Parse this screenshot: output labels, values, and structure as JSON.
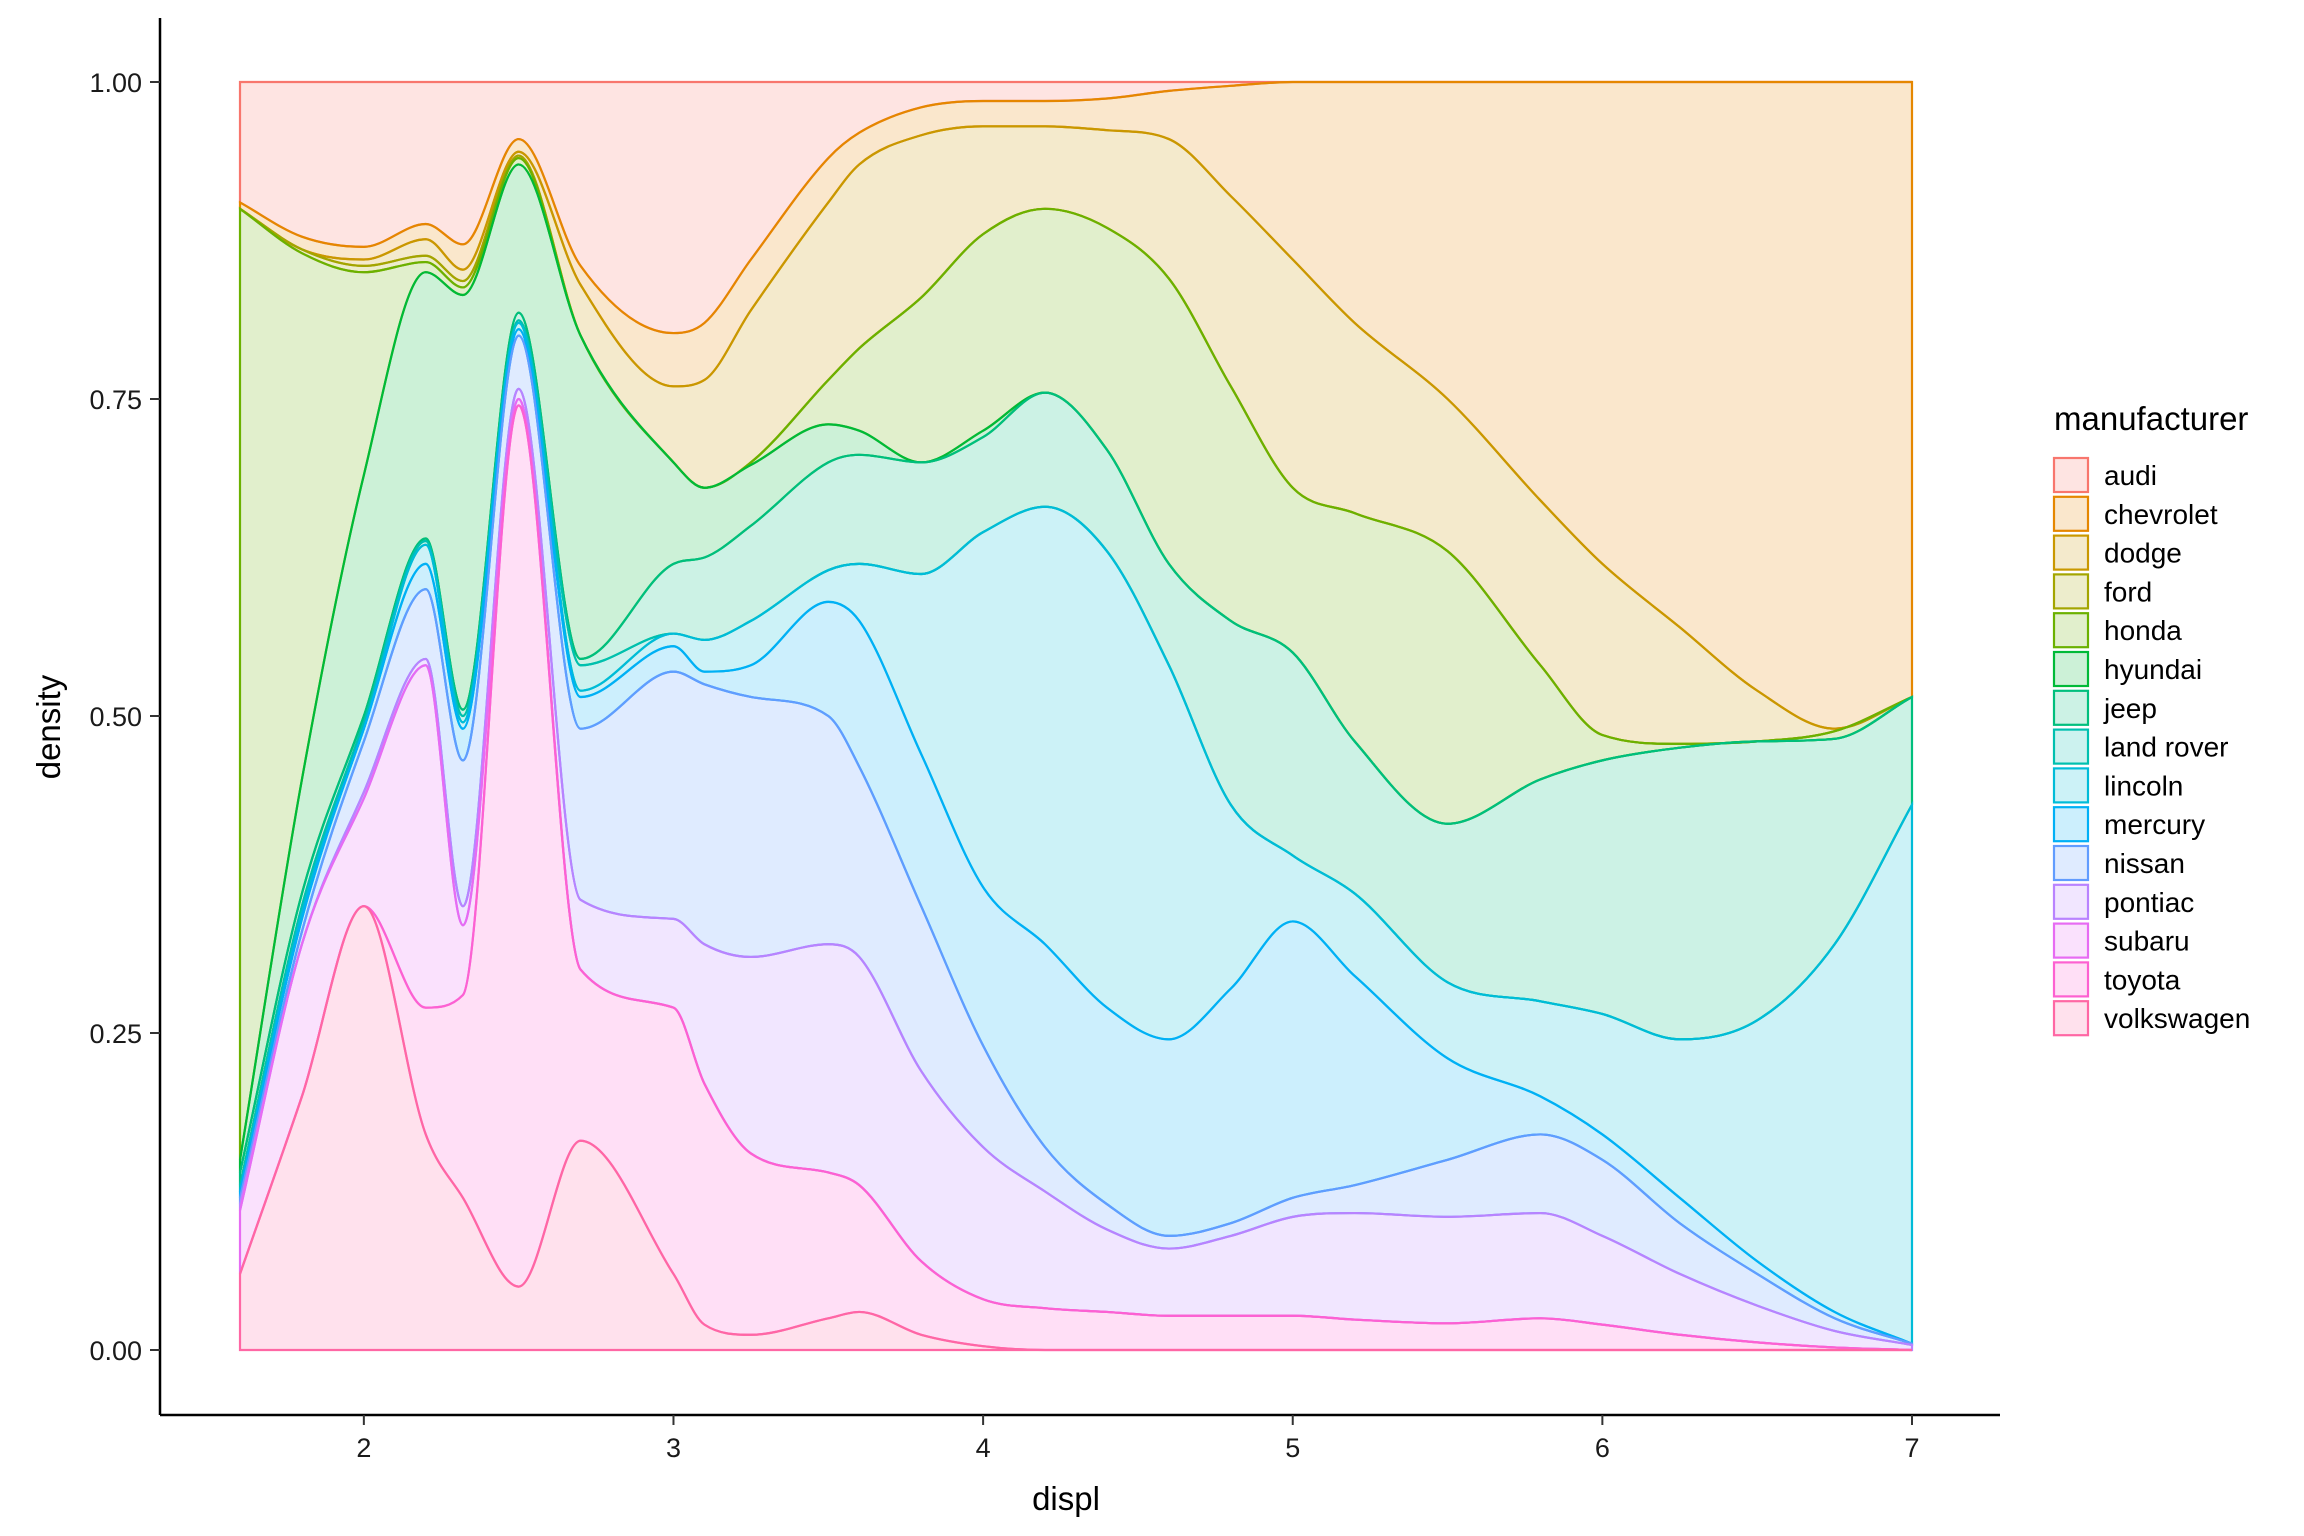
{
  "chart_data": {
    "type": "area",
    "subtype": "stacked-conditional-density",
    "xlabel": "displ",
    "ylabel": "density",
    "xlim": [
      1.6,
      7.0
    ],
    "ylim": [
      0,
      1
    ],
    "x_ticks": [
      "2",
      "3",
      "4",
      "5",
      "6",
      "7"
    ],
    "y_ticks": [
      "0.00",
      "0.25",
      "0.50",
      "0.75",
      "1.00"
    ],
    "grid": false,
    "legend": {
      "title": "manufacturer",
      "position": "right",
      "entries": [
        "audi",
        "chevrolet",
        "dodge",
        "ford",
        "honda",
        "hyundai",
        "jeep",
        "land rover",
        "lincoln",
        "mercury",
        "nissan",
        "pontiac",
        "subaru",
        "toyota",
        "volkswagen"
      ]
    },
    "colors": [
      "#F8766D",
      "#E58700",
      "#C99800",
      "#A3A500",
      "#6BB100",
      "#00BA38",
      "#00BF7D",
      "#00C0AF",
      "#00BCD8",
      "#00B0F6",
      "#619CFF",
      "#B983FF",
      "#E76BF3",
      "#FD61D1",
      "#FF67A4"
    ],
    "x": [
      1.6,
      1.8,
      2.0,
      2.2,
      2.32,
      2.5,
      2.7,
      3.0,
      3.1,
      3.25,
      3.5,
      3.6,
      3.8,
      4.0,
      4.2,
      4.4,
      4.6,
      4.8,
      5.0,
      5.2,
      5.5,
      5.8,
      6.0,
      6.25,
      6.5,
      6.75,
      7.0
    ],
    "series": [
      {
        "name": "audi",
        "upper": [
          1.0,
          1.0,
          1.0,
          1.0,
          1.0,
          1.0,
          1.0,
          1.0,
          1.0,
          1.0,
          1.0,
          1.0,
          1.0,
          1.0,
          1.0,
          1.0,
          1.0,
          1.0,
          1.0,
          1.0,
          1.0,
          1.0,
          1.0,
          1.0,
          1.0,
          1.0,
          1.0
        ]
      },
      {
        "name": "chevrolet",
        "upper": [
          0.905,
          0.878,
          0.87,
          0.888,
          0.872,
          0.955,
          0.855,
          0.802,
          0.81,
          0.86,
          0.94,
          0.96,
          0.98,
          0.985,
          0.985,
          0.987,
          0.993,
          0.997,
          1.0,
          1.0,
          1.0,
          1.0,
          1.0,
          1.0,
          1.0,
          1.0,
          1.0
        ]
      },
      {
        "name": "dodge",
        "upper": [
          0.9,
          0.868,
          0.86,
          0.876,
          0.852,
          0.945,
          0.84,
          0.76,
          0.765,
          0.82,
          0.905,
          0.935,
          0.958,
          0.965,
          0.965,
          0.962,
          0.955,
          0.91,
          0.86,
          0.81,
          0.75,
          0.67,
          0.62,
          0.57,
          0.52,
          0.49,
          0.515
        ]
      },
      {
        "name": "ford",
        "upper": [
          0.9,
          0.868,
          0.855,
          0.863,
          0.843,
          0.942,
          0.8,
          0.7,
          0.68,
          0.7,
          0.765,
          0.79,
          0.83,
          0.88,
          0.9,
          0.885,
          0.845,
          0.76,
          0.68,
          0.66,
          0.63,
          0.54,
          0.485,
          0.478,
          0.48,
          0.488,
          0.515
        ]
      },
      {
        "name": "honda",
        "upper": [
          0.9,
          0.865,
          0.85,
          0.858,
          0.838,
          0.94,
          0.8,
          0.7,
          0.68,
          0.7,
          0.765,
          0.79,
          0.83,
          0.88,
          0.9,
          0.885,
          0.845,
          0.76,
          0.68,
          0.66,
          0.63,
          0.54,
          0.485,
          0.478,
          0.48,
          0.488,
          0.515
        ]
      },
      {
        "name": "hyundai",
        "upper": [
          0.15,
          0.45,
          0.69,
          0.85,
          0.832,
          0.935,
          0.8,
          0.7,
          0.68,
          0.698,
          0.73,
          0.725,
          0.7,
          0.725,
          0.755,
          0.71,
          0.62,
          0.575,
          0.55,
          0.48,
          0.415,
          0.45,
          0.465,
          0.475,
          0.48,
          0.482,
          0.515
        ]
      },
      {
        "name": "jeep",
        "upper": [
          0.14,
          0.36,
          0.5,
          0.64,
          0.505,
          0.818,
          0.545,
          0.62,
          0.625,
          0.65,
          0.7,
          0.706,
          0.7,
          0.72,
          0.755,
          0.71,
          0.62,
          0.575,
          0.55,
          0.48,
          0.415,
          0.45,
          0.465,
          0.475,
          0.48,
          0.482,
          0.515
        ]
      },
      {
        "name": "land rover",
        "upper": [
          0.13,
          0.35,
          0.495,
          0.638,
          0.5,
          0.812,
          0.54,
          0.565,
          0.56,
          0.575,
          0.615,
          0.62,
          0.612,
          0.645,
          0.665,
          0.63,
          0.54,
          0.43,
          0.39,
          0.36,
          0.29,
          0.275,
          0.265,
          0.245,
          0.26,
          0.32,
          0.43
        ]
      },
      {
        "name": "lincoln",
        "upper": [
          0.125,
          0.345,
          0.49,
          0.635,
          0.495,
          0.81,
          0.52,
          0.565,
          0.56,
          0.575,
          0.615,
          0.62,
          0.612,
          0.645,
          0.665,
          0.63,
          0.54,
          0.43,
          0.39,
          0.36,
          0.29,
          0.275,
          0.265,
          0.245,
          0.26,
          0.32,
          0.43
        ]
      },
      {
        "name": "mercury",
        "upper": [
          0.125,
          0.34,
          0.49,
          0.62,
          0.49,
          0.805,
          0.515,
          0.555,
          0.535,
          0.54,
          0.59,
          0.575,
          0.47,
          0.365,
          0.32,
          0.27,
          0.245,
          0.285,
          0.338,
          0.295,
          0.23,
          0.2,
          0.17,
          0.12,
          0.07,
          0.03,
          0.005
        ]
      },
      {
        "name": "nissan",
        "upper": [
          0.12,
          0.33,
          0.48,
          0.6,
          0.465,
          0.8,
          0.49,
          0.535,
          0.525,
          0.515,
          0.5,
          0.46,
          0.35,
          0.24,
          0.16,
          0.115,
          0.09,
          0.1,
          0.12,
          0.13,
          0.15,
          0.17,
          0.15,
          0.1,
          0.06,
          0.025,
          0.005
        ]
      },
      {
        "name": "pontiac",
        "upper": [
          0.115,
          0.32,
          0.44,
          0.545,
          0.35,
          0.758,
          0.355,
          0.34,
          0.32,
          0.31,
          0.32,
          0.31,
          0.22,
          0.16,
          0.125,
          0.095,
          0.08,
          0.09,
          0.105,
          0.108,
          0.105,
          0.108,
          0.09,
          0.06,
          0.035,
          0.015,
          0.004
        ]
      },
      {
        "name": "subaru",
        "upper": [
          0.11,
          0.32,
          0.435,
          0.54,
          0.335,
          0.75,
          0.3,
          0.27,
          0.21,
          0.155,
          0.14,
          0.13,
          0.07,
          0.04,
          0.033,
          0.03,
          0.027,
          0.027,
          0.027,
          0.024,
          0.021,
          0.025,
          0.02,
          0.012,
          0.006,
          0.002,
          0.0
        ]
      },
      {
        "name": "toyota",
        "upper": [
          0.06,
          0.2,
          0.35,
          0.27,
          0.28,
          0.745,
          0.3,
          0.27,
          0.21,
          0.155,
          0.14,
          0.13,
          0.07,
          0.04,
          0.033,
          0.03,
          0.027,
          0.027,
          0.027,
          0.024,
          0.021,
          0.025,
          0.02,
          0.012,
          0.006,
          0.002,
          0.0
        ]
      },
      {
        "name": "volkswagen",
        "upper": [
          0.06,
          0.2,
          0.35,
          0.17,
          0.12,
          0.05,
          0.165,
          0.06,
          0.02,
          0.012,
          0.025,
          0.03,
          0.012,
          0.003,
          0.0,
          0.0,
          0.0,
          0.0,
          0.0,
          0.0,
          0.0,
          0.0,
          0.0,
          0.0,
          0.0,
          0.0,
          0.0
        ]
      }
    ]
  }
}
